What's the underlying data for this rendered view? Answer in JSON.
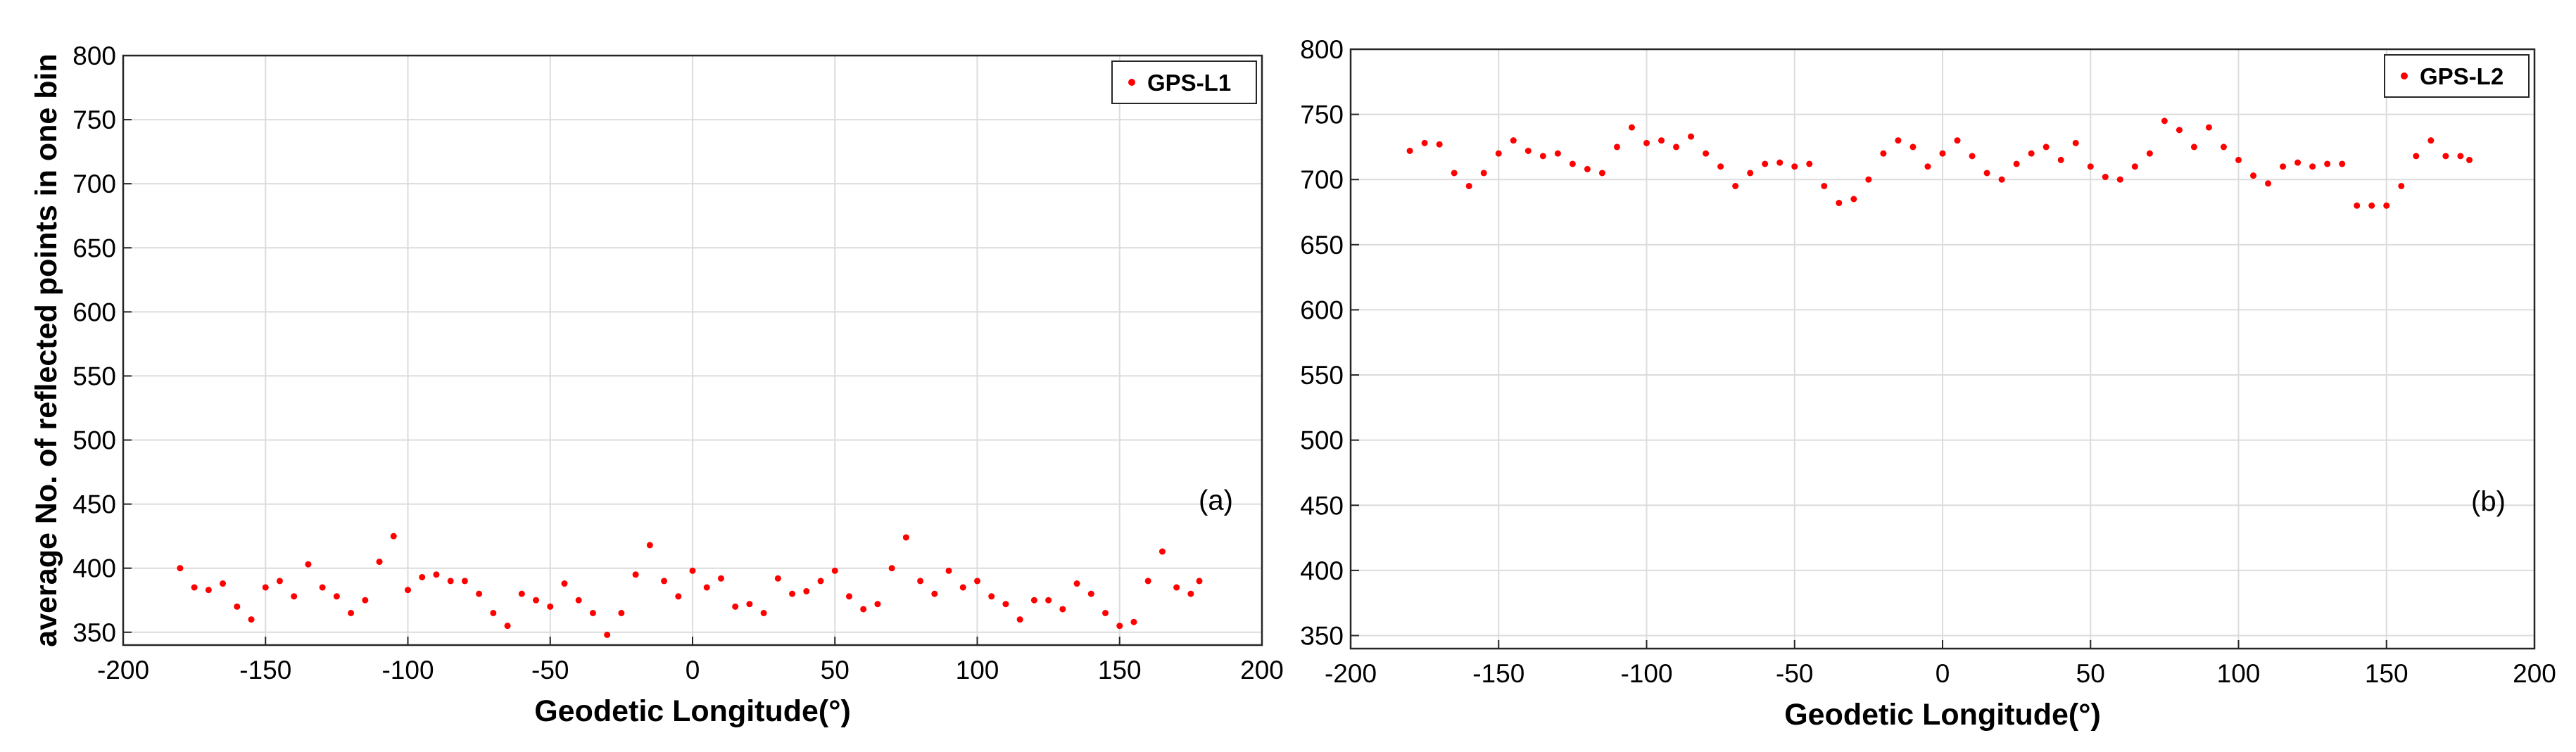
{
  "chart_data": [
    {
      "type": "scatter",
      "xlabel": "Geodetic Longitude(°)",
      "ylabel": "average No. of reflected points in one bin",
      "annotation": "(a)",
      "x": [
        -180,
        -175,
        -170,
        -165,
        -160,
        -155,
        -150,
        -145,
        -140,
        -135,
        -130,
        -125,
        -120,
        -115,
        -110,
        -105,
        -100,
        -95,
        -90,
        -85,
        -80,
        -75,
        -70,
        -65,
        -60,
        -55,
        -50,
        -45,
        -40,
        -35,
        -30,
        -25,
        -20,
        -15,
        -10,
        -5,
        0,
        5,
        10,
        15,
        20,
        25,
        30,
        35,
        40,
        45,
        50,
        55,
        60,
        65,
        70,
        75,
        80,
        85,
        90,
        95,
        100,
        105,
        110,
        115,
        120,
        125,
        130,
        135,
        140,
        145,
        150,
        155,
        160,
        165,
        170,
        175,
        178
      ],
      "series": [
        {
          "name": "GPS-L1",
          "color": "#ff0000",
          "values": [
            400,
            385,
            383,
            388,
            370,
            360,
            385,
            390,
            378,
            403,
            385,
            378,
            365,
            375,
            405,
            425,
            383,
            393,
            395,
            390,
            390,
            380,
            365,
            355,
            380,
            375,
            370,
            388,
            375,
            365,
            348,
            365,
            395,
            418,
            390,
            378,
            398,
            385,
            392,
            370,
            372,
            365,
            392,
            380,
            382,
            390,
            398,
            378,
            368,
            372,
            400,
            424,
            390,
            380,
            398,
            385,
            390,
            378,
            372,
            360,
            375,
            375,
            368,
            388,
            380,
            365,
            355,
            358,
            390,
            413,
            385,
            380,
            390
          ]
        }
      ],
      "xlim": [
        -200,
        200
      ],
      "xticks": [
        -200,
        -150,
        -100,
        -50,
        0,
        50,
        100,
        150,
        200
      ],
      "ylim": [
        340,
        800
      ],
      "yticks": [
        350,
        400,
        450,
        500,
        550,
        600,
        650,
        700,
        750,
        800
      ],
      "grid": true,
      "legend": "upper right"
    },
    {
      "type": "scatter",
      "xlabel": "Geodetic Longitude(°)",
      "annotation": "(b)",
      "x": [
        -180,
        -175,
        -170,
        -165,
        -160,
        -155,
        -150,
        -145,
        -140,
        -135,
        -130,
        -125,
        -120,
        -115,
        -110,
        -105,
        -100,
        -95,
        -90,
        -85,
        -80,
        -75,
        -70,
        -65,
        -60,
        -55,
        -50,
        -45,
        -40,
        -35,
        -30,
        -25,
        -20,
        -15,
        -10,
        -5,
        0,
        5,
        10,
        15,
        20,
        25,
        30,
        35,
        40,
        45,
        50,
        55,
        60,
        65,
        70,
        75,
        80,
        85,
        90,
        95,
        100,
        105,
        110,
        115,
        120,
        125,
        130,
        135,
        140,
        145,
        150,
        155,
        160,
        165,
        170,
        175,
        178
      ],
      "series": [
        {
          "name": "GPS-L2",
          "color": "#ff0000",
          "values": [
            722,
            728,
            727,
            705,
            695,
            705,
            720,
            730,
            722,
            718,
            720,
            712,
            708,
            705,
            725,
            740,
            728,
            730,
            725,
            733,
            720,
            710,
            695,
            705,
            712,
            713,
            710,
            712,
            695,
            682,
            685,
            700,
            720,
            730,
            725,
            710,
            720,
            730,
            718,
            705,
            700,
            712,
            720,
            725,
            715,
            728,
            710,
            702,
            700,
            710,
            720,
            745,
            738,
            725,
            740,
            725,
            715,
            703,
            697,
            710,
            713,
            710,
            712,
            712,
            680,
            680,
            680,
            695,
            718,
            730,
            718,
            718,
            715
          ]
        }
      ],
      "xlim": [
        -200,
        200
      ],
      "xticks": [
        -200,
        -150,
        -100,
        -50,
        0,
        50,
        100,
        150,
        200
      ],
      "ylim": [
        340,
        800
      ],
      "yticks": [
        350,
        400,
        450,
        500,
        550,
        600,
        650,
        700,
        750,
        800
      ],
      "grid": true,
      "legend": "upper right"
    }
  ]
}
